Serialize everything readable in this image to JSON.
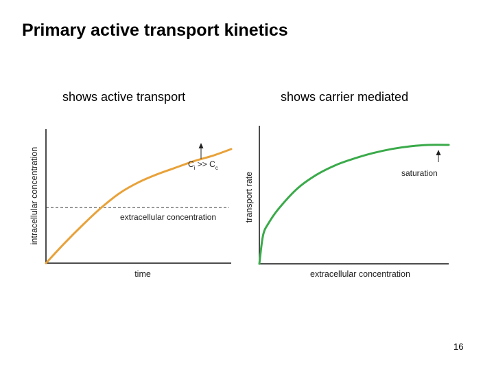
{
  "slide": {
    "title": "Primary active transport kinetics",
    "caption_left": "shows active transport",
    "caption_right": "shows carrier mediated",
    "page_number": "16"
  },
  "colors": {
    "left_curve": "#e8a23a",
    "right_curve": "#3aaa4a",
    "axis": "#111111",
    "dashed_line": "#333333"
  },
  "chart_data": [
    {
      "type": "line",
      "xlabel": "time",
      "ylabel": "intracellular concentration",
      "x": [
        0,
        0.1,
        0.2,
        0.3,
        0.4,
        0.5,
        0.6,
        0.7,
        0.8,
        0.9,
        1.0
      ],
      "series": [
        {
          "values": [
            0,
            0.15,
            0.29,
            0.42,
            0.53,
            0.61,
            0.67,
            0.72,
            0.77,
            0.81,
            0.86
          ],
          "color": "#e8a23a"
        }
      ],
      "reference_line": {
        "y": 0.42,
        "style": "dashed",
        "label": "extracellular concentration"
      },
      "annotation": {
        "text_main": "C",
        "sub1": "i",
        "mid": " >> C",
        "sub2": "c"
      },
      "xlim": [
        0,
        1
      ],
      "ylim": [
        0,
        1
      ],
      "ticks": false,
      "grid": false
    },
    {
      "type": "line",
      "xlabel": "extracellular concentration",
      "ylabel": "transport rate",
      "x": [
        0,
        0.02,
        0.05,
        0.1,
        0.2,
        0.3,
        0.4,
        0.5,
        0.6,
        0.7,
        0.8,
        0.9,
        1.0
      ],
      "series": [
        {
          "values": [
            0,
            0.21,
            0.3,
            0.4,
            0.55,
            0.65,
            0.72,
            0.77,
            0.81,
            0.84,
            0.86,
            0.87,
            0.87
          ],
          "color": "#3aaa4a"
        }
      ],
      "annotation": {
        "text": "saturation"
      },
      "xlim": [
        0,
        1
      ],
      "ylim": [
        0,
        1
      ],
      "ticks": false,
      "grid": false
    }
  ]
}
